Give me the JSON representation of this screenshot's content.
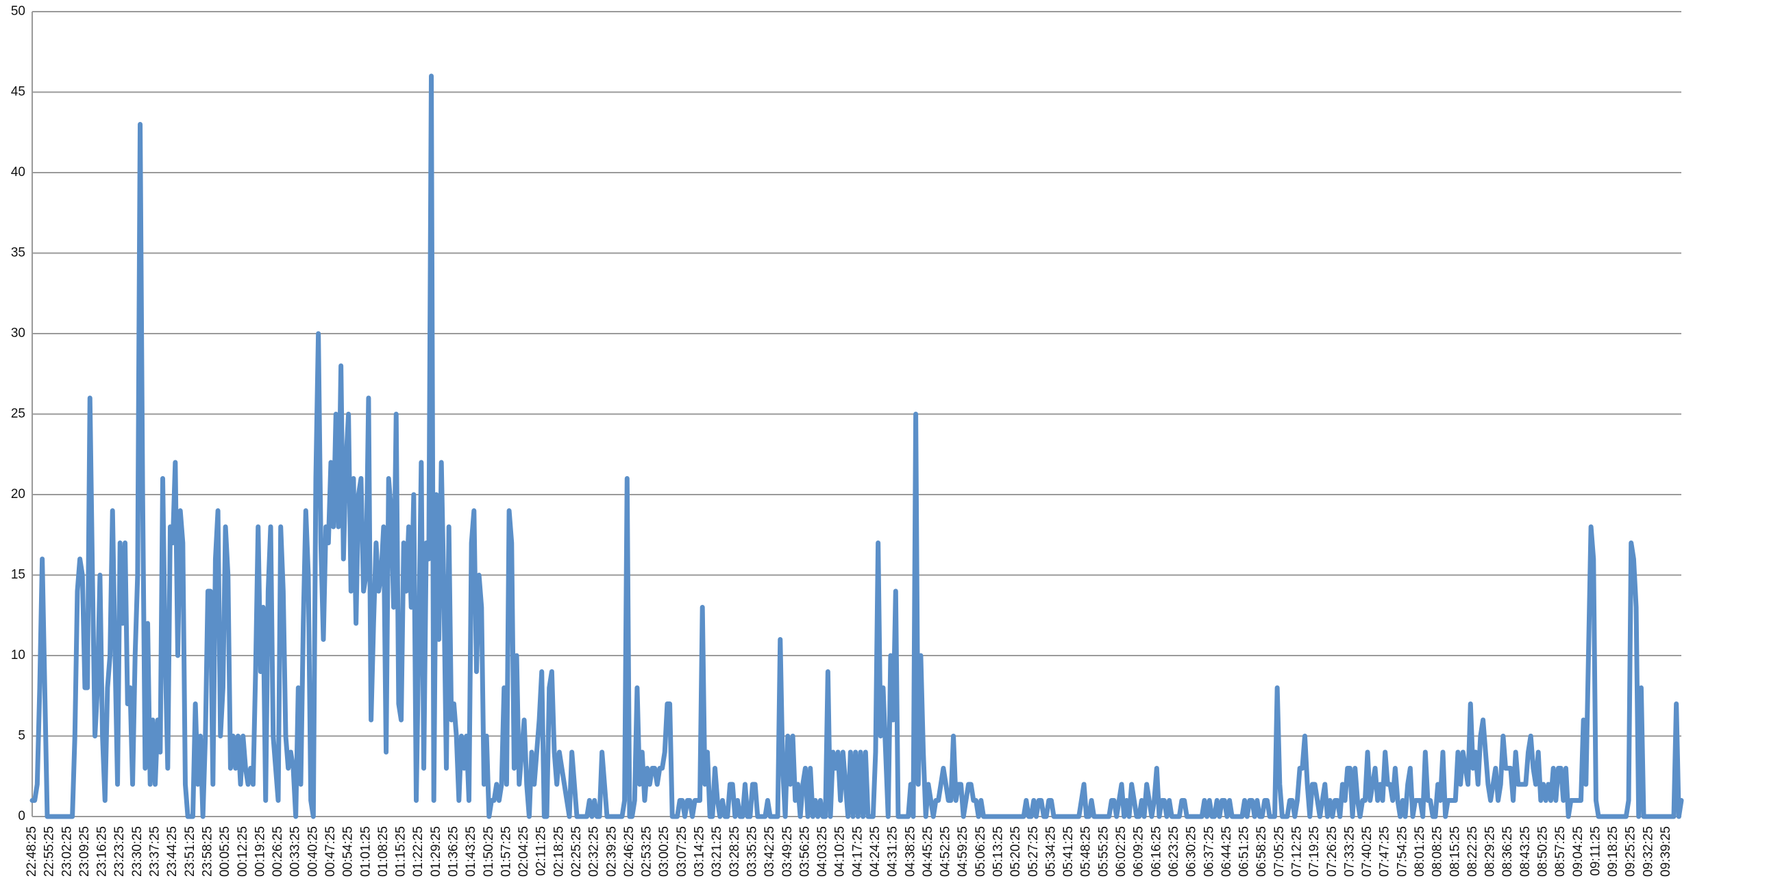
{
  "chart_data": {
    "type": "line",
    "categories": [
      "22:48:25",
      null,
      null,
      null,
      null,
      null,
      null,
      "22:55:25",
      null,
      null,
      null,
      null,
      null,
      null,
      "23:02:25",
      null,
      null,
      null,
      null,
      null,
      null,
      "23:09:25",
      null,
      null,
      null,
      null,
      null,
      null,
      "23:16:25",
      null,
      null,
      null,
      null,
      null,
      null,
      "23:23:25",
      null,
      null,
      null,
      null,
      null,
      null,
      "23:30:25",
      null,
      null,
      null,
      null,
      null,
      null,
      "23:37:25",
      null,
      null,
      null,
      null,
      null,
      null,
      "23:44:25",
      null,
      null,
      null,
      null,
      null,
      null,
      "23:51:25",
      null,
      null,
      null,
      null,
      null,
      null,
      "23:58:25",
      null,
      null,
      null,
      null,
      null,
      null,
      "00:05:25",
      null,
      null,
      null,
      null,
      null,
      null,
      "00:12:25",
      null,
      null,
      null,
      null,
      null,
      null,
      "00:19:25",
      null,
      null,
      null,
      null,
      null,
      null,
      "00:26:25",
      null,
      null,
      null,
      null,
      null,
      null,
      "00:33:25",
      null,
      null,
      null,
      null,
      null,
      null,
      "00:40:25",
      null,
      null,
      null,
      null,
      null,
      null,
      "00:47:25",
      null,
      null,
      null,
      null,
      null,
      null,
      "00:54:25",
      null,
      null,
      null,
      null,
      null,
      null,
      "01:01:25",
      null,
      null,
      null,
      null,
      null,
      null,
      "01:08:25",
      null,
      null,
      null,
      null,
      null,
      null,
      "01:15:25",
      null,
      null,
      null,
      null,
      null,
      null,
      "01:22:25",
      null,
      null,
      null,
      null,
      null,
      null,
      "01:29:25",
      null,
      null,
      null,
      null,
      null,
      null,
      "01:36:25",
      null,
      null,
      null,
      null,
      null,
      null,
      "01:43:25",
      null,
      null,
      null,
      null,
      null,
      null,
      "01:50:25",
      null,
      null,
      null,
      null,
      null,
      null,
      "01:57:25",
      null,
      null,
      null,
      null,
      null,
      null,
      "02:04:25",
      null,
      null,
      null,
      null,
      null,
      null,
      "02:11:25",
      null,
      null,
      null,
      null,
      null,
      null,
      "02:18:25",
      null,
      null,
      null,
      null,
      null,
      null,
      "02:25:25",
      null,
      null,
      null,
      null,
      null,
      null,
      "02:32:25",
      null,
      null,
      null,
      null,
      null,
      null,
      "02:39:25",
      null,
      null,
      null,
      null,
      null,
      null,
      "02:46:25",
      null,
      null,
      null,
      null,
      null,
      null,
      "02:53:25",
      null,
      null,
      null,
      null,
      null,
      null,
      "03:00:25",
      null,
      null,
      null,
      null,
      null,
      null,
      "03:07:25",
      null,
      null,
      null,
      null,
      null,
      null,
      "03:14:25",
      null,
      null,
      null,
      null,
      null,
      null,
      "03:21:25",
      null,
      null,
      null,
      null,
      null,
      null,
      "03:28:25",
      null,
      null,
      null,
      null,
      null,
      null,
      "03:35:25",
      null,
      null,
      null,
      null,
      null,
      null,
      "03:42:25",
      null,
      null,
      null,
      null,
      null,
      null,
      "03:49:25",
      null,
      null,
      null,
      null,
      null,
      null,
      "03:56:25",
      null,
      null,
      null,
      null,
      null,
      null,
      "04:03:25",
      null,
      null,
      null,
      null,
      null,
      null,
      "04:10:25",
      null,
      null,
      null,
      null,
      null,
      null,
      "04:17:25",
      null,
      null,
      null,
      null,
      null,
      null,
      "04:24:25",
      null,
      null,
      null,
      null,
      null,
      null,
      "04:31:25",
      null,
      null,
      null,
      null,
      null,
      null,
      "04:38:25",
      null,
      null,
      null,
      null,
      null,
      null,
      "04:45:25",
      null,
      null,
      null,
      null,
      null,
      null,
      "04:52:25",
      null,
      null,
      null,
      null,
      null,
      null,
      "04:59:25",
      null,
      null,
      null,
      null,
      null,
      null,
      "05:06:25",
      null,
      null,
      null,
      null,
      null,
      null,
      "05:13:25",
      null,
      null,
      null,
      null,
      null,
      null,
      "05:20:25",
      null,
      null,
      null,
      null,
      null,
      null,
      "05:27:25",
      null,
      null,
      null,
      null,
      null,
      null,
      "05:34:25",
      null,
      null,
      null,
      null,
      null,
      null,
      "05:41:25",
      null,
      null,
      null,
      null,
      null,
      null,
      "05:48:25",
      null,
      null,
      null,
      null,
      null,
      null,
      "05:55:25",
      null,
      null,
      null,
      null,
      null,
      null,
      "06:02:25",
      null,
      null,
      null,
      null,
      null,
      null,
      "06:09:25",
      null,
      null,
      null,
      null,
      null,
      null,
      "06:16:25",
      null,
      null,
      null,
      null,
      null,
      null,
      "06:23:25",
      null,
      null,
      null,
      null,
      null,
      null,
      "06:30:25",
      null,
      null,
      null,
      null,
      null,
      null,
      "06:37:25",
      null,
      null,
      null,
      null,
      null,
      null,
      "06:44:25",
      null,
      null,
      null,
      null,
      null,
      null,
      "06:51:25",
      null,
      null,
      null,
      null,
      null,
      null,
      "06:58:25",
      null,
      null,
      null,
      null,
      null,
      null,
      "07:05:25",
      null,
      null,
      null,
      null,
      null,
      null,
      "07:12:25",
      null,
      null,
      null,
      null,
      null,
      null,
      "07:19:25",
      null,
      null,
      null,
      null,
      null,
      null,
      "07:26:25",
      null,
      null,
      null,
      null,
      null,
      null,
      "07:33:25",
      null,
      null,
      null,
      null,
      null,
      null,
      "07:40:25",
      null,
      null,
      null,
      null,
      null,
      null,
      "07:47:25",
      null,
      null,
      null,
      null,
      null,
      null,
      "07:54:25",
      null,
      null,
      null,
      null,
      null,
      null,
      "08:01:25",
      null,
      null,
      null,
      null,
      null,
      null,
      "08:08:25",
      null,
      null,
      null,
      null,
      null,
      null,
      "08:15:25",
      null,
      null,
      null,
      null,
      null,
      null,
      "08:22:25",
      null,
      null,
      null,
      null,
      null,
      null,
      "08:29:25",
      null,
      null,
      null,
      null,
      null,
      null,
      "08:36:25",
      null,
      null,
      null,
      null,
      null,
      null,
      "08:43:25",
      null,
      null,
      null,
      null,
      null,
      null,
      "08:50:25",
      null,
      null,
      null,
      null,
      null,
      null,
      "08:57:25",
      null,
      null,
      null,
      null,
      null,
      null,
      "09:04:25",
      null,
      null,
      null,
      null,
      null,
      null,
      "09:11:25",
      null,
      null,
      null,
      null,
      null,
      null,
      "09:18:25",
      null,
      null,
      null,
      null,
      null,
      null,
      "09:25:25",
      null,
      null,
      null,
      null,
      null,
      null,
      "09:32:25",
      null,
      null,
      null,
      null,
      null,
      null,
      "09:39:25",
      null,
      null,
      null,
      null,
      null,
      null
    ],
    "values": [
      1,
      1,
      2,
      8,
      16,
      8,
      0,
      0,
      0,
      0,
      0,
      0,
      0,
      0,
      0,
      0,
      0,
      5,
      14,
      16,
      15,
      8,
      8,
      26,
      15,
      5,
      8,
      15,
      5,
      1,
      8,
      10,
      19,
      10,
      2,
      17,
      12,
      17,
      7,
      8,
      2,
      10,
      15,
      43,
      20,
      3,
      12,
      2,
      6,
      2,
      6,
      4,
      21,
      10,
      3,
      18,
      17,
      22,
      10,
      19,
      17,
      2,
      0,
      0,
      0,
      7,
      2,
      5,
      0,
      5,
      14,
      14,
      2,
      16,
      19,
      5,
      8,
      18,
      15,
      3,
      5,
      3,
      5,
      2,
      5,
      3,
      2,
      3,
      2,
      9,
      18,
      9,
      13,
      1,
      14,
      18,
      5,
      3,
      1,
      18,
      14,
      5,
      3,
      4,
      3,
      0,
      8,
      2,
      12,
      19,
      15,
      1,
      0,
      21,
      30,
      17,
      11,
      18,
      17,
      22,
      18,
      25,
      18,
      28,
      16,
      22,
      25,
      14,
      21,
      12,
      20,
      21,
      14,
      15,
      26,
      6,
      12,
      17,
      14,
      15,
      18,
      4,
      21,
      19,
      13,
      25,
      7,
      6,
      17,
      14,
      18,
      13,
      20,
      1,
      11,
      22,
      3,
      17,
      16,
      46,
      1,
      20,
      11,
      22,
      14,
      3,
      18,
      6,
      7,
      5,
      1,
      5,
      3,
      5,
      1,
      17,
      19,
      9,
      15,
      13,
      2,
      5,
      0,
      1,
      1,
      2,
      1,
      2,
      8,
      2,
      19,
      17,
      3,
      10,
      2,
      4,
      6,
      2,
      0,
      4,
      2,
      4,
      6,
      9,
      0,
      0,
      8,
      9,
      4,
      2,
      4,
      3,
      2,
      1,
      0,
      4,
      2,
      0,
      0,
      0,
      0,
      0,
      1,
      0,
      1,
      0,
      0,
      4,
      2,
      0,
      0,
      0,
      0,
      0,
      0,
      0,
      1,
      21,
      0,
      0,
      1,
      8,
      2,
      4,
      1,
      3,
      2,
      3,
      3,
      2,
      3,
      3,
      4,
      7,
      7,
      0,
      0,
      0,
      1,
      1,
      0,
      1,
      1,
      0,
      1,
      1,
      1,
      13,
      2,
      4,
      0,
      0,
      3,
      1,
      0,
      1,
      0,
      0,
      2,
      2,
      0,
      1,
      0,
      0,
      2,
      0,
      0,
      2,
      2,
      0,
      0,
      0,
      0,
      1,
      0,
      0,
      0,
      0,
      11,
      3,
      0,
      5,
      2,
      5,
      1,
      2,
      0,
      2,
      3,
      0,
      3,
      0,
      1,
      0,
      1,
      0,
      0,
      9,
      0,
      4,
      3,
      4,
      1,
      4,
      2,
      0,
      4,
      0,
      4,
      0,
      4,
      0,
      4,
      0,
      0,
      0,
      4,
      17,
      5,
      8,
      4,
      0,
      10,
      6,
      14,
      0,
      0,
      0,
      0,
      0,
      2,
      0,
      25,
      2,
      10,
      4,
      0,
      2,
      1,
      0,
      1,
      1,
      2,
      3,
      2,
      1,
      1,
      5,
      1,
      2,
      2,
      0,
      1,
      2,
      2,
      1,
      1,
      0,
      1,
      0,
      0,
      0,
      0,
      0,
      0,
      0,
      0,
      0,
      0,
      0,
      0,
      0,
      0,
      0,
      0,
      0,
      1,
      0,
      0,
      1,
      0,
      1,
      1,
      0,
      0,
      1,
      1,
      0,
      0,
      0,
      0,
      0,
      0,
      0,
      0,
      0,
      0,
      0,
      1,
      2,
      0,
      0,
      1,
      0,
      0,
      0,
      0,
      0,
      0,
      0,
      1,
      1,
      0,
      1,
      2,
      0,
      1,
      0,
      2,
      1,
      0,
      0,
      1,
      0,
      2,
      1,
      0,
      1,
      3,
      0,
      1,
      1,
      0,
      1,
      0,
      0,
      0,
      0,
      1,
      1,
      0,
      0,
      0,
      0,
      0,
      0,
      0,
      1,
      0,
      1,
      0,
      0,
      1,
      0,
      1,
      1,
      0,
      1,
      0,
      0,
      0,
      0,
      0,
      1,
      0,
      1,
      1,
      0,
      1,
      0,
      0,
      1,
      1,
      0,
      0,
      0,
      8,
      2,
      0,
      0,
      0,
      1,
      1,
      0,
      1,
      3,
      3,
      5,
      2,
      0,
      2,
      2,
      1,
      0,
      1,
      2,
      0,
      1,
      0,
      1,
      1,
      0,
      2,
      1,
      3,
      3,
      0,
      3,
      1,
      0,
      1,
      1,
      4,
      1,
      2,
      3,
      1,
      2,
      1,
      4,
      2,
      2,
      1,
      3,
      1,
      0,
      1,
      0,
      2,
      3,
      0,
      1,
      1,
      1,
      0,
      4,
      1,
      1,
      0,
      0,
      2,
      1,
      4,
      0,
      1,
      1,
      1,
      1,
      4,
      2,
      4,
      3,
      2,
      7,
      3,
      4,
      2,
      5,
      6,
      4,
      2,
      1,
      2,
      3,
      1,
      2,
      5,
      3,
      3,
      3,
      1,
      4,
      2,
      2,
      2,
      2,
      4,
      5,
      3,
      2,
      4,
      1,
      2,
      1,
      2,
      1,
      3,
      1,
      3,
      3,
      1,
      3,
      0,
      1,
      1,
      1,
      1,
      1,
      6,
      2,
      10,
      18,
      16,
      1,
      0,
      0,
      0,
      0,
      0,
      0,
      0,
      0,
      0,
      0,
      0,
      0,
      1,
      17,
      16,
      13,
      0,
      8,
      0,
      0,
      0,
      0,
      0,
      0,
      0,
      0,
      0,
      0,
      0,
      0,
      0,
      7,
      0,
      1
    ],
    "color": "#5b8fc8",
    "ylim": [
      0,
      50
    ],
    "yticks": [
      0,
      5,
      10,
      15,
      20,
      25,
      30,
      35,
      40,
      45,
      50
    ],
    "grid": true
  }
}
